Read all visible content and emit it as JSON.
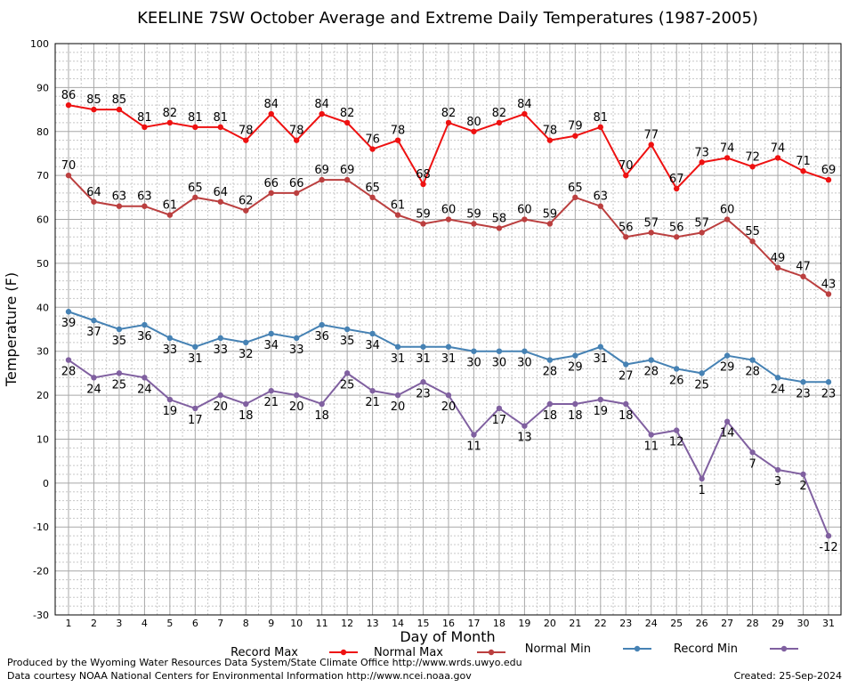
{
  "chart_data": {
    "type": "line",
    "title": "KEELINE 7SW October Average and Extreme Daily Temperatures (1987-2005)",
    "xlabel": "Day of Month",
    "ylabel": "Temperature (F)",
    "ylim": [
      -30,
      100
    ],
    "yticks": [
      -30,
      -20,
      -10,
      0,
      10,
      20,
      30,
      40,
      50,
      60,
      70,
      80,
      90,
      100
    ],
    "x": [
      1,
      2,
      3,
      4,
      5,
      6,
      7,
      8,
      9,
      10,
      11,
      12,
      13,
      14,
      15,
      16,
      17,
      18,
      19,
      20,
      21,
      22,
      23,
      24,
      25,
      26,
      27,
      28,
      29,
      30,
      31
    ],
    "grid": true,
    "legend_position": "bottom",
    "series": [
      {
        "name": "Record Max",
        "color": "#ee1111",
        "label_pos": "above",
        "values": [
          86,
          85,
          85,
          81,
          82,
          81,
          81,
          78,
          84,
          78,
          84,
          82,
          76,
          78,
          68,
          82,
          80,
          82,
          84,
          78,
          79,
          81,
          70,
          77,
          67,
          73,
          74,
          72,
          74,
          71,
          69
        ]
      },
      {
        "name": "Normal Max",
        "color": "#bb3f3f",
        "label_pos": "above",
        "values": [
          70,
          64,
          63,
          63,
          61,
          65,
          64,
          62,
          66,
          66,
          69,
          69,
          65,
          61,
          59,
          60,
          59,
          58,
          60,
          59,
          65,
          63,
          56,
          57,
          56,
          57,
          60,
          55,
          49,
          47,
          43
        ]
      },
      {
        "name": "Normal Min",
        "color": "#4682b4",
        "label_pos": "below",
        "values": [
          39,
          37,
          35,
          36,
          33,
          31,
          33,
          32,
          34,
          33,
          36,
          35,
          34,
          31,
          31,
          31,
          30,
          30,
          30,
          28,
          29,
          31,
          27,
          28,
          26,
          25,
          29,
          28,
          24,
          23,
          23
        ]
      },
      {
        "name": "Record Min",
        "color": "#8060a0",
        "label_pos": "below",
        "values": [
          28,
          24,
          25,
          24,
          19,
          17,
          20,
          18,
          21,
          20,
          18,
          25,
          21,
          20,
          23,
          20,
          11,
          17,
          13,
          18,
          18,
          19,
          18,
          11,
          12,
          1,
          14,
          7,
          3,
          2,
          -12
        ]
      }
    ]
  },
  "footer": {
    "line1": "Produced by the Wyoming Water Resources Data System/State Climate Office http://www.wrds.uwyo.edu",
    "line2": "Data courtesy NOAA National Centers for Environmental Information http://www.ncei.noaa.gov",
    "created": "Created:  25-Sep-2024"
  }
}
